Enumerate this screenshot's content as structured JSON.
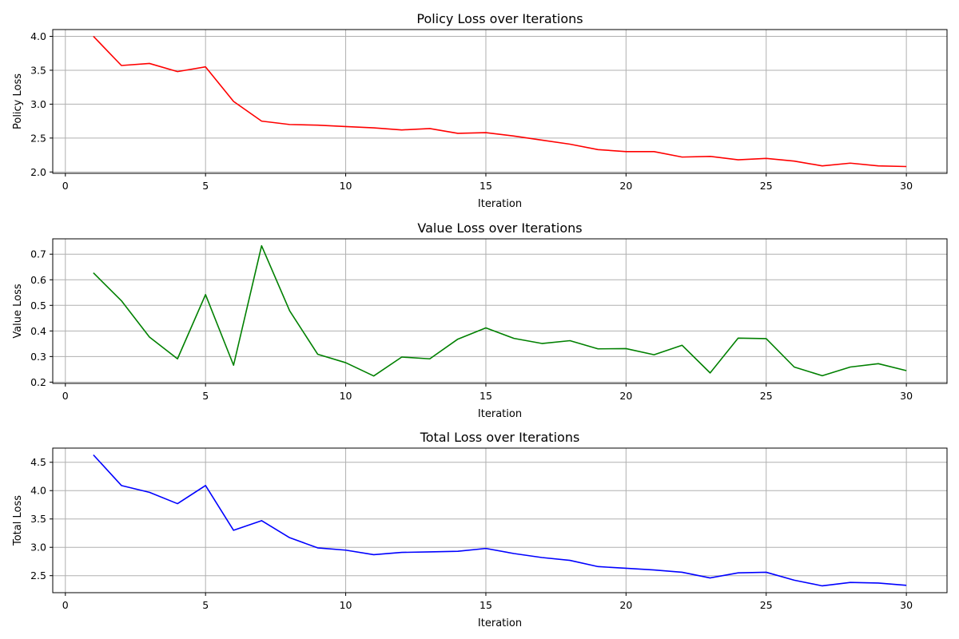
{
  "chart_data": [
    {
      "type": "line",
      "title": "Policy Loss over Iterations",
      "xlabel": "Iteration",
      "ylabel": "Policy Loss",
      "xlim": [
        -0.45,
        31.45
      ],
      "ylim": [
        1.98,
        4.1
      ],
      "xticks": [
        0,
        5,
        10,
        15,
        20,
        25,
        30
      ],
      "yticks": [
        2.0,
        2.5,
        3.0,
        3.5,
        4.0
      ],
      "ytick_format": 1,
      "grid": true,
      "color": "#ff0000",
      "x": [
        1,
        2,
        3,
        4,
        5,
        6,
        7,
        8,
        9,
        10,
        11,
        12,
        13,
        14,
        15,
        16,
        17,
        18,
        19,
        20,
        21,
        22,
        23,
        24,
        25,
        26,
        27,
        28,
        29,
        30
      ],
      "values": [
        4.0,
        3.57,
        3.6,
        3.48,
        3.55,
        3.04,
        2.75,
        2.7,
        2.69,
        2.67,
        2.65,
        2.62,
        2.64,
        2.57,
        2.58,
        2.53,
        2.47,
        2.41,
        2.33,
        2.3,
        2.3,
        2.22,
        2.23,
        2.18,
        2.2,
        2.16,
        2.09,
        2.13,
        2.09,
        2.08
      ]
    },
    {
      "type": "line",
      "title": "Value Loss over Iterations",
      "xlabel": "Iteration",
      "ylabel": "Value Loss",
      "xlim": [
        -0.45,
        31.45
      ],
      "ylim": [
        0.195,
        0.76
      ],
      "xticks": [
        0,
        5,
        10,
        15,
        20,
        25,
        30
      ],
      "yticks": [
        0.2,
        0.3,
        0.4,
        0.5,
        0.6,
        0.7
      ],
      "ytick_format": 1,
      "grid": true,
      "color": "#008000",
      "x": [
        1,
        2,
        3,
        4,
        5,
        6,
        7,
        8,
        9,
        10,
        11,
        12,
        13,
        14,
        15,
        16,
        17,
        18,
        19,
        20,
        21,
        22,
        23,
        24,
        25,
        26,
        27,
        28,
        29,
        30
      ],
      "values": [
        0.627,
        0.518,
        0.376,
        0.291,
        0.542,
        0.266,
        0.733,
        0.479,
        0.309,
        0.276,
        0.224,
        0.298,
        0.291,
        0.368,
        0.412,
        0.371,
        0.351,
        0.362,
        0.33,
        0.331,
        0.307,
        0.344,
        0.236,
        0.372,
        0.37,
        0.259,
        0.225,
        0.259,
        0.272,
        0.245
      ]
    },
    {
      "type": "line",
      "title": "Total Loss over Iterations",
      "xlabel": "Iteration",
      "ylabel": "Total Loss",
      "xlim": [
        -0.45,
        31.45
      ],
      "ylim": [
        2.2,
        4.75
      ],
      "xticks": [
        0,
        5,
        10,
        15,
        20,
        25,
        30
      ],
      "yticks": [
        2.5,
        3.0,
        3.5,
        4.0,
        4.5
      ],
      "ytick_format": 1,
      "grid": true,
      "color": "#0000ff",
      "x": [
        1,
        2,
        3,
        4,
        5,
        6,
        7,
        8,
        9,
        10,
        11,
        12,
        13,
        14,
        15,
        16,
        17,
        18,
        19,
        20,
        21,
        22,
        23,
        24,
        25,
        26,
        27,
        28,
        29,
        30
      ],
      "values": [
        4.63,
        4.09,
        3.97,
        3.77,
        4.09,
        3.3,
        3.47,
        3.17,
        2.99,
        2.95,
        2.87,
        2.91,
        2.92,
        2.93,
        2.98,
        2.89,
        2.82,
        2.77,
        2.66,
        2.63,
        2.6,
        2.56,
        2.46,
        2.55,
        2.56,
        2.42,
        2.32,
        2.38,
        2.37,
        2.33
      ]
    }
  ]
}
